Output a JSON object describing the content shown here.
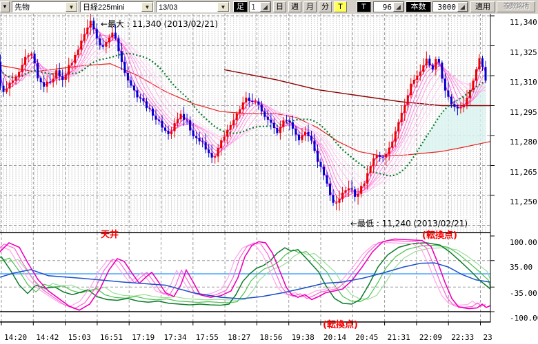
{
  "toolbar": {
    "edge_arrow": "▼",
    "combo_category": "先物",
    "combo_instrument": "日経225mini",
    "combo_contract": "13/03",
    "ashi_label": "足",
    "interval_value": "1",
    "btn_day": "日",
    "btn_week": "週",
    "btn_month": "月",
    "btn_minute": "分",
    "btn_tick": "T",
    "t_label": "T",
    "t_value": "96",
    "honsu_label": "本数",
    "honsu_value": "3000",
    "apply_label": "適用",
    "multi_label": "複数銘柄",
    "spin_glyph": "◢",
    "drop_glyph": "▼"
  },
  "annotations": {
    "max_label": "←最大 : 11,340 (2013/02/21)",
    "min_label": "←最低 : 11,240 (2013/02/21)",
    "ceiling_label": "天井",
    "turn_main_label": "(転換点)",
    "turn_lower_label": "(転換点)"
  },
  "chart_data": {
    "type": "candlestick_with_oscillator",
    "price_axis": {
      "labels": [
        "11,340",
        "11,325",
        "11,310",
        "11,295",
        "11,280",
        "11,265",
        "11,250"
      ],
      "values": [
        11340,
        11325,
        11310,
        11295,
        11280,
        11265,
        11250
      ]
    },
    "osc_axis": {
      "labels": [
        "100.00",
        "35.00",
        "-35.00",
        "-100.00"
      ],
      "values": [
        100,
        35,
        -35,
        -100
      ]
    },
    "time_axis": {
      "labels": [
        "14:20",
        "14:42",
        "15:03",
        "16:51",
        "17:19",
        "17:34",
        "17:55",
        "18:27",
        "18:56",
        "19:38",
        "20:14",
        "20:45",
        "21:31",
        "22:09",
        "22:33",
        "23"
      ]
    },
    "extremes": {
      "max_price": 11340,
      "max_date": "2013/02/21",
      "min_price": 11240,
      "min_date": "2013/02/21"
    },
    "bars": 160,
    "close_path": [
      [
        7,
        11312
      ],
      [
        14,
        11322
      ],
      [
        22,
        11302
      ],
      [
        30,
        11303
      ],
      [
        38,
        11308
      ],
      [
        48,
        11312
      ],
      [
        58,
        11320
      ],
      [
        66,
        11322
      ],
      [
        74,
        11310
      ],
      [
        84,
        11305
      ],
      [
        94,
        11307
      ],
      [
        102,
        11312
      ],
      [
        112,
        11308
      ],
      [
        122,
        11316
      ],
      [
        132,
        11322
      ],
      [
        142,
        11330
      ],
      [
        152,
        11338
      ],
      [
        158,
        11330
      ],
      [
        166,
        11324
      ],
      [
        174,
        11326
      ],
      [
        182,
        11331
      ],
      [
        190,
        11326
      ],
      [
        198,
        11315
      ],
      [
        208,
        11306
      ],
      [
        218,
        11300
      ],
      [
        228,
        11296
      ],
      [
        238,
        11292
      ],
      [
        248,
        11288
      ],
      [
        258,
        11282
      ],
      [
        266,
        11281
      ],
      [
        274,
        11287
      ],
      [
        282,
        11290
      ],
      [
        290,
        11288
      ],
      [
        298,
        11280
      ],
      [
        306,
        11278
      ],
      [
        314,
        11276
      ],
      [
        322,
        11272
      ],
      [
        328,
        11268
      ],
      [
        336,
        11273
      ],
      [
        344,
        11279
      ],
      [
        352,
        11284
      ],
      [
        360,
        11288
      ],
      [
        368,
        11293
      ],
      [
        376,
        11299
      ],
      [
        384,
        11296
      ],
      [
        392,
        11298
      ],
      [
        400,
        11291
      ],
      [
        408,
        11288
      ],
      [
        416,
        11284
      ],
      [
        424,
        11281
      ],
      [
        432,
        11289
      ],
      [
        440,
        11286
      ],
      [
        448,
        11280
      ],
      [
        456,
        11278
      ],
      [
        464,
        11282
      ],
      [
        472,
        11276
      ],
      [
        480,
        11268
      ],
      [
        488,
        11262
      ],
      [
        496,
        11254
      ],
      [
        504,
        11244
      ],
      [
        512,
        11248
      ],
      [
        520,
        11252
      ],
      [
        528,
        11254
      ],
      [
        536,
        11249
      ],
      [
        544,
        11254
      ],
      [
        552,
        11260
      ],
      [
        560,
        11267
      ],
      [
        568,
        11271
      ],
      [
        576,
        11269
      ],
      [
        584,
        11274
      ],
      [
        592,
        11280
      ],
      [
        600,
        11288
      ],
      [
        608,
        11297
      ],
      [
        616,
        11305
      ],
      [
        624,
        11309
      ],
      [
        632,
        11315
      ],
      [
        640,
        11318
      ],
      [
        648,
        11313
      ],
      [
        654,
        11320
      ],
      [
        662,
        11306
      ],
      [
        670,
        11299
      ],
      [
        678,
        11295
      ],
      [
        686,
        11293
      ],
      [
        694,
        11297
      ],
      [
        702,
        11303
      ],
      [
        710,
        11312
      ],
      [
        716,
        11319
      ],
      [
        722,
        11312
      ],
      [
        729,
        11293
      ]
    ],
    "ma_red": [
      [
        7,
        11316
      ],
      [
        70,
        11312
      ],
      [
        140,
        11315
      ],
      [
        180,
        11316
      ],
      [
        220,
        11310
      ],
      [
        260,
        11302
      ],
      [
        300,
        11296
      ],
      [
        340,
        11292
      ],
      [
        380,
        11291
      ],
      [
        420,
        11291
      ],
      [
        450,
        11289
      ],
      [
        480,
        11284
      ],
      [
        510,
        11277
      ],
      [
        540,
        11272
      ],
      [
        570,
        11270
      ],
      [
        600,
        11270
      ],
      [
        630,
        11271
      ],
      [
        660,
        11272
      ],
      [
        690,
        11274
      ],
      [
        731,
        11277
      ]
    ],
    "ma_dark_red": [
      [
        345,
        11313
      ],
      [
        420,
        11308
      ],
      [
        480,
        11303
      ],
      [
        540,
        11300
      ],
      [
        600,
        11297
      ],
      [
        660,
        11295
      ],
      [
        731,
        11295
      ]
    ],
    "oscillator": {
      "zero": 0,
      "magenta": [
        [
          7,
          28
        ],
        [
          18,
          55
        ],
        [
          33,
          82
        ],
        [
          48,
          70
        ],
        [
          60,
          30
        ],
        [
          75,
          -15
        ],
        [
          90,
          -45
        ],
        [
          105,
          -65
        ],
        [
          120,
          -85
        ],
        [
          135,
          -96
        ],
        [
          150,
          -80
        ],
        [
          165,
          -40
        ],
        [
          178,
          10
        ],
        [
          190,
          40
        ],
        [
          200,
          33
        ],
        [
          212,
          0
        ],
        [
          222,
          -25
        ],
        [
          232,
          -8
        ],
        [
          240,
          4
        ],
        [
          250,
          -22
        ],
        [
          260,
          -50
        ],
        [
          272,
          -60
        ],
        [
          282,
          -30
        ],
        [
          290,
          10
        ],
        [
          298,
          -15
        ],
        [
          310,
          -55
        ],
        [
          325,
          -62
        ],
        [
          340,
          -58
        ],
        [
          355,
          -45
        ],
        [
          365,
          -10
        ],
        [
          375,
          45
        ],
        [
          385,
          75
        ],
        [
          395,
          85
        ],
        [
          405,
          82
        ],
        [
          415,
          55
        ],
        [
          425,
          10
        ],
        [
          435,
          -35
        ],
        [
          443,
          -55
        ],
        [
          452,
          -62
        ],
        [
          462,
          -55
        ],
        [
          472,
          -68
        ],
        [
          482,
          -60
        ],
        [
          492,
          -50
        ],
        [
          505,
          -45
        ],
        [
          517,
          -40
        ],
        [
          530,
          -18
        ],
        [
          545,
          18
        ],
        [
          560,
          58
        ],
        [
          575,
          85
        ],
        [
          592,
          92
        ],
        [
          612,
          90
        ],
        [
          632,
          88
        ],
        [
          645,
          72
        ],
        [
          655,
          28
        ],
        [
          665,
          -22
        ],
        [
          675,
          -65
        ],
        [
          685,
          -88
        ],
        [
          700,
          -92
        ],
        [
          712,
          -90
        ],
        [
          719,
          -80
        ],
        [
          725,
          -89
        ],
        [
          731,
          -84
        ]
      ],
      "green": [
        [
          7,
          36
        ],
        [
          22,
          45
        ],
        [
          35,
          10
        ],
        [
          48,
          -30
        ],
        [
          60,
          -52
        ],
        [
          72,
          -30
        ],
        [
          85,
          -38
        ],
        [
          100,
          -35
        ],
        [
          112,
          -48
        ],
        [
          125,
          -55
        ],
        [
          138,
          -48
        ],
        [
          148,
          -42
        ],
        [
          160,
          -60
        ],
        [
          175,
          -68
        ],
        [
          190,
          -70
        ],
        [
          205,
          -65
        ],
        [
          220,
          -72
        ],
        [
          235,
          -75
        ],
        [
          250,
          -72
        ],
        [
          265,
          -78
        ],
        [
          280,
          -80
        ],
        [
          295,
          -82
        ],
        [
          310,
          -80
        ],
        [
          325,
          -82
        ],
        [
          340,
          -83
        ],
        [
          352,
          -80
        ],
        [
          362,
          -55
        ],
        [
          372,
          -20
        ],
        [
          382,
          0
        ],
        [
          392,
          15
        ],
        [
          402,
          22
        ],
        [
          412,
          35
        ],
        [
          422,
          55
        ],
        [
          433,
          69
        ],
        [
          442,
          60
        ],
        [
          452,
          64
        ],
        [
          462,
          45
        ],
        [
          472,
          25
        ],
        [
          482,
          5
        ],
        [
          492,
          -30
        ],
        [
          505,
          -65
        ],
        [
          517,
          -78
        ],
        [
          530,
          -80
        ],
        [
          542,
          -68
        ],
        [
          555,
          -28
        ],
        [
          568,
          18
        ],
        [
          582,
          50
        ],
        [
          598,
          70
        ],
        [
          618,
          80
        ],
        [
          638,
          82
        ],
        [
          658,
          76
        ],
        [
          672,
          58
        ],
        [
          688,
          32
        ],
        [
          702,
          8
        ],
        [
          716,
          -18
        ],
        [
          731,
          -40
        ]
      ],
      "blue": [
        [
          7,
          -16
        ],
        [
          40,
          2
        ],
        [
          65,
          11
        ],
        [
          90,
          -5
        ],
        [
          140,
          -12
        ],
        [
          200,
          -22
        ],
        [
          260,
          -30
        ],
        [
          300,
          -50
        ],
        [
          340,
          -62
        ],
        [
          370,
          -66
        ],
        [
          400,
          -60
        ],
        [
          430,
          -50
        ],
        [
          460,
          -38
        ],
        [
          490,
          -25
        ],
        [
          515,
          -22
        ],
        [
          545,
          -12
        ],
        [
          575,
          2
        ],
        [
          605,
          18
        ],
        [
          630,
          28
        ],
        [
          650,
          29
        ],
        [
          670,
          18
        ],
        [
          690,
          -2
        ],
        [
          710,
          -16
        ],
        [
          731,
          -22
        ]
      ]
    },
    "colors": {
      "up_candle": "#e80000",
      "down_candle": "#0000d0",
      "ma_green_dotted": "#067a2a",
      "ma_red": "#e82222",
      "ma_dark_red": "#8b0000",
      "cloud": "#d9f4ef",
      "fan": [
        "#ffdaf6",
        "#ffcaf1",
        "#ffb8ec",
        "#ffa2e6",
        "#ff8ade",
        "#ff6cd8",
        "#ff4ad2",
        "#ff22cc"
      ],
      "osc_magenta": [
        "#ffa3e8",
        "#ff5fd6",
        "#ee00bb"
      ],
      "osc_green": [
        "#9ade9a",
        "#4ec24e",
        "#0a7a28"
      ],
      "osc_blue": "#1b50c8",
      "osc_zero": "#4da6ff",
      "annotation_red": "#ff0000"
    }
  }
}
